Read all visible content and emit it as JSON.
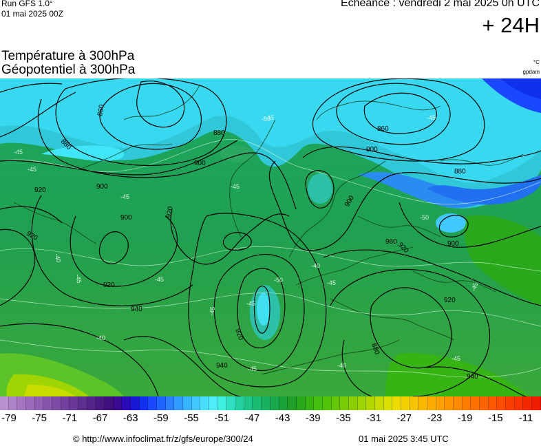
{
  "header": {
    "run_label": "Run GFS 1.0°",
    "run_date": "01 mai 2025 00Z",
    "echeance": "Echéance : vendredi 2 mai 2025 0h UTC",
    "leadtime": "+ 24H"
  },
  "titles": {
    "line1": "Température à 300hPa",
    "line2": "Géopotentiel à 300hPa",
    "unit_temperature": "°C",
    "unit_geopotential": "gpdam"
  },
  "map": {
    "geopotential_labels": [
      "860",
      "880",
      "900",
      "920",
      "940",
      "960",
      "880",
      "860",
      "900",
      "920",
      "880",
      "900",
      "920",
      "900",
      "920",
      "880",
      "900",
      "900",
      "920",
      "940",
      "920",
      "940",
      "920"
    ],
    "temperature_labels": [
      "-45",
      "-50",
      "-45",
      "-40",
      "-45",
      "-45",
      "-40",
      "-45",
      "-50",
      "-45",
      "-45",
      "-40",
      "-45",
      "-45",
      "-40",
      "-45",
      "-45",
      "-45",
      "-50",
      "-45",
      "-45"
    ]
  },
  "legend": {
    "colors": [
      "#b98fce",
      "#ad82c7",
      "#a476c0",
      "#9a6bba",
      "#9060b4",
      "#8656ad",
      "#7c4ba6",
      "#7241a0",
      "#683799",
      "#5e2d92",
      "#55248b",
      "#4a1a84",
      "#40107e",
      "#3a0a92",
      "#2a0ab8",
      "#1a18d8",
      "#1030f0",
      "#1a48ff",
      "#2064ff",
      "#2a80ff",
      "#309cff",
      "#38b4ff",
      "#40c8ff",
      "#48dcff",
      "#50ecf8",
      "#40f0e0",
      "#30e0c0",
      "#22d0a0",
      "#1cc688",
      "#18bc72",
      "#16b25e",
      "#16a84a",
      "#1aa238",
      "#209e28",
      "#2aa81c",
      "#36b414",
      "#44c00e",
      "#52c40a",
      "#64c808",
      "#78cc06",
      "#8cd004",
      "#a0d402",
      "#b4d800",
      "#c8dc00",
      "#dce000",
      "#ecdc00",
      "#f4d000",
      "#f8c400",
      "#fab800",
      "#fcac00",
      "#fda000",
      "#fe9400",
      "#fe8800",
      "#fe7c00",
      "#fe7000",
      "#fe6400",
      "#fe5800",
      "#fc4c00",
      "#fa4000",
      "#f83400",
      "#f42800",
      "#f01c00"
    ],
    "ticks": [
      "-79",
      "-75",
      "-71",
      "-67",
      "-63",
      "-59",
      "-55",
      "-51",
      "-47",
      "-43",
      "-39",
      "-35",
      "-31",
      "-27",
      "-23",
      "-19",
      "-15",
      "-11"
    ]
  },
  "footer": {
    "url": "© http://www.infoclimat.fr/z/gfs/europe/300/24",
    "timestamp": "01 mai 2025  3:45 UTC"
  }
}
